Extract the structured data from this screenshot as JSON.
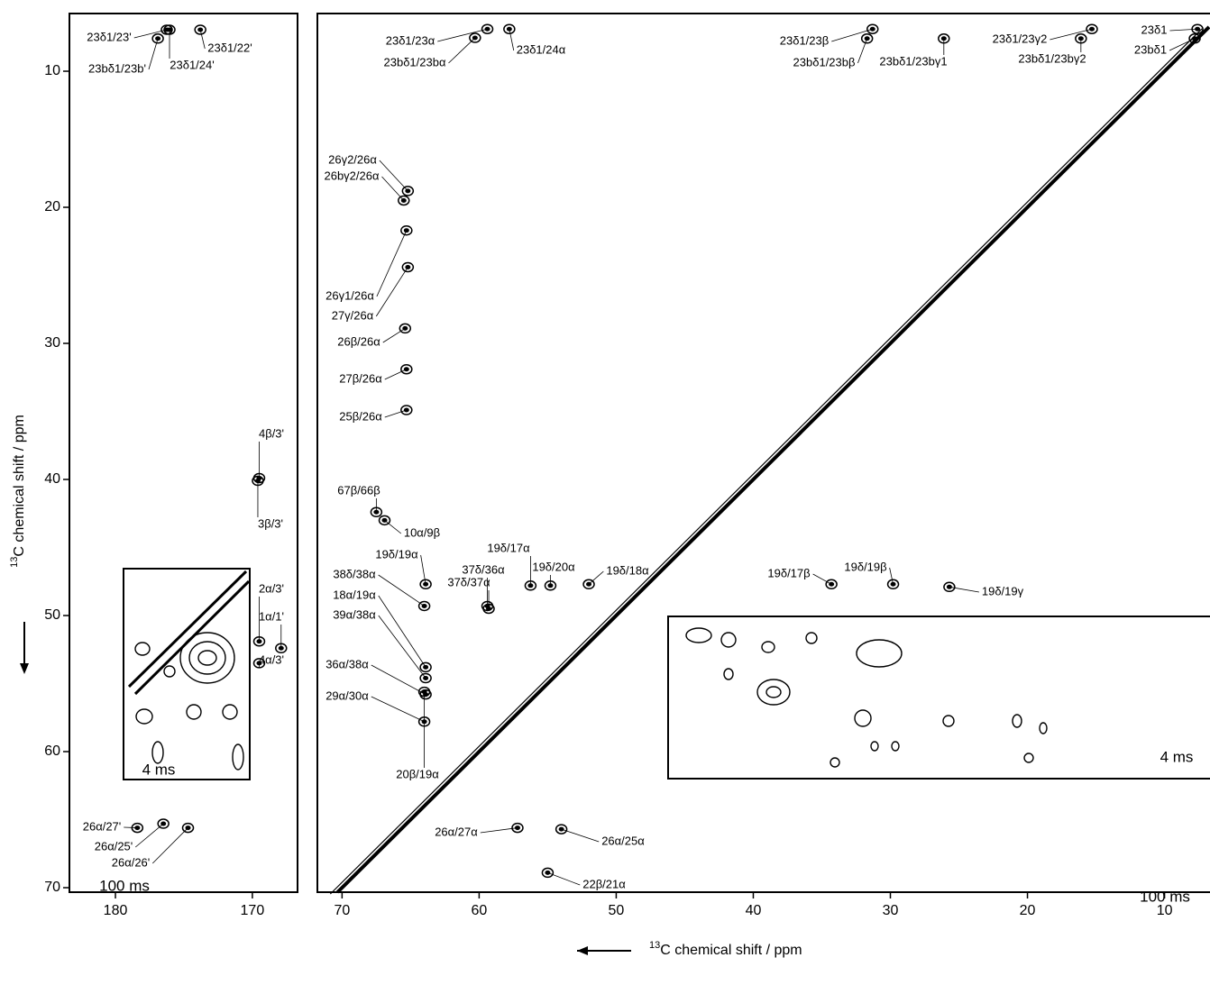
{
  "chart_data": [
    {
      "type": "contour",
      "panel_label": "100 ms",
      "inset_label": "4 ms",
      "xlim": [
        183.36,
        166.7
      ],
      "xticks": [
        180,
        170
      ],
      "ylim": [
        5.76,
        70.33
      ],
      "yticks": [
        10,
        20,
        30,
        40,
        50,
        60,
        70
      ],
      "y_label": {
        "superscript": "13",
        "text": "C chemical shift / ppm"
      },
      "peaks": [
        {
          "label": "23δ1/23'",
          "x": 176.25,
          "y": 6.95
        },
        {
          "label": "23bδ1/23b'",
          "x": 176.9,
          "y": 7.6
        },
        {
          "label": "23δ1/24'",
          "x": 176.05,
          "y": 6.95
        },
        {
          "label": "23δ1/22'",
          "x": 173.8,
          "y": 6.95
        },
        {
          "label": "4β/3'",
          "x": 169.5,
          "y": 39.9
        },
        {
          "label": "3β/3'",
          "x": 169.6,
          "y": 40.1
        },
        {
          "label": "2α/3'",
          "x": 169.5,
          "y": 51.9
        },
        {
          "label": "1α/1'",
          "x": 167.9,
          "y": 52.4
        },
        {
          "label": "4α/3'",
          "x": 169.5,
          "y": 53.5
        },
        {
          "label": "26α/27'",
          "x": 178.4,
          "y": 65.6
        },
        {
          "label": "26α/25'",
          "x": 176.5,
          "y": 65.3
        },
        {
          "label": "26α/26'",
          "x": 174.7,
          "y": 65.6
        }
      ]
    },
    {
      "type": "contour",
      "panel_label": "100 ms",
      "inset_label": "4 ms",
      "xlim": [
        71.8,
        6.75
      ],
      "xticks": [
        70,
        60,
        50,
        40,
        30,
        20,
        10
      ],
      "ylim": [
        5.76,
        70.33
      ],
      "x_label": {
        "superscript": "13",
        "text": "C chemical shift / ppm"
      },
      "peaks": [
        {
          "label": "23δ1/23α",
          "x": 59.4,
          "y": 6.9
        },
        {
          "label": "23bδ1/23bα",
          "x": 60.3,
          "y": 7.55
        },
        {
          "label": "23δ1/24α",
          "x": 57.8,
          "y": 6.9
        },
        {
          "label": "23δ1/23β",
          "x": 31.3,
          "y": 6.9
        },
        {
          "label": "23bδ1/23bβ",
          "x": 31.7,
          "y": 7.6
        },
        {
          "label": "23bδ1/23bγ1",
          "x": 26.1,
          "y": 7.6
        },
        {
          "label": "23δ1/23γ2",
          "x": 15.3,
          "y": 6.9
        },
        {
          "label": "23bδ1/23bγ2",
          "x": 16.1,
          "y": 7.6
        },
        {
          "label": "23δ1",
          "x": 7.6,
          "y": 6.9
        },
        {
          "label": "23bδ1",
          "x": 7.8,
          "y": 7.6
        },
        {
          "label": "26γ2/26α",
          "x": 65.2,
          "y": 18.8
        },
        {
          "label": "26bγ2/26α",
          "x": 65.5,
          "y": 19.5
        },
        {
          "label": "26γ1/26α",
          "x": 65.3,
          "y": 21.7
        },
        {
          "label": "27γ/26α",
          "x": 65.2,
          "y": 24.4
        },
        {
          "label": "26β/26α",
          "x": 65.4,
          "y": 28.9
        },
        {
          "label": "27β/26α",
          "x": 65.3,
          "y": 31.9
        },
        {
          "label": "25β/26α",
          "x": 65.3,
          "y": 34.9
        },
        {
          "label": "67β/66β",
          "x": 67.5,
          "y": 42.4
        },
        {
          "label": "10α/9β",
          "x": 66.9,
          "y": 43.0
        },
        {
          "label": "19δ/19α",
          "x": 63.9,
          "y": 47.7
        },
        {
          "label": "38δ/38α",
          "x": 64.0,
          "y": 49.3
        },
        {
          "label": "18α/19α",
          "x": 63.9,
          "y": 53.8
        },
        {
          "label": "39α/38α",
          "x": 63.9,
          "y": 54.6
        },
        {
          "label": "36α/38α",
          "x": 63.9,
          "y": 55.8
        },
        {
          "label": "29α/30α",
          "x": 64.0,
          "y": 57.8
        },
        {
          "label": "20β/19α",
          "x": 64.0,
          "y": 55.6
        },
        {
          "label": "37δ/36α",
          "x": 59.4,
          "y": 49.3
        },
        {
          "label": "37δ/37α",
          "x": 59.3,
          "y": 49.5
        },
        {
          "label": "19δ/17α",
          "x": 56.25,
          "y": 47.8
        },
        {
          "label": "19δ/20α",
          "x": 54.8,
          "y": 47.8
        },
        {
          "label": "19δ/18α",
          "x": 52.0,
          "y": 47.7
        },
        {
          "label": "26α/27α",
          "x": 57.2,
          "y": 65.6
        },
        {
          "label": "26α/25α",
          "x": 54.0,
          "y": 65.7
        },
        {
          "label": "22β/21α",
          "x": 55.0,
          "y": 68.9
        },
        {
          "label": "19δ/17β",
          "x": 34.3,
          "y": 47.7
        },
        {
          "label": "19δ/19β",
          "x": 29.8,
          "y": 47.7
        },
        {
          "label": "19δ/19γ",
          "x": 25.7,
          "y": 47.9
        }
      ]
    }
  ]
}
